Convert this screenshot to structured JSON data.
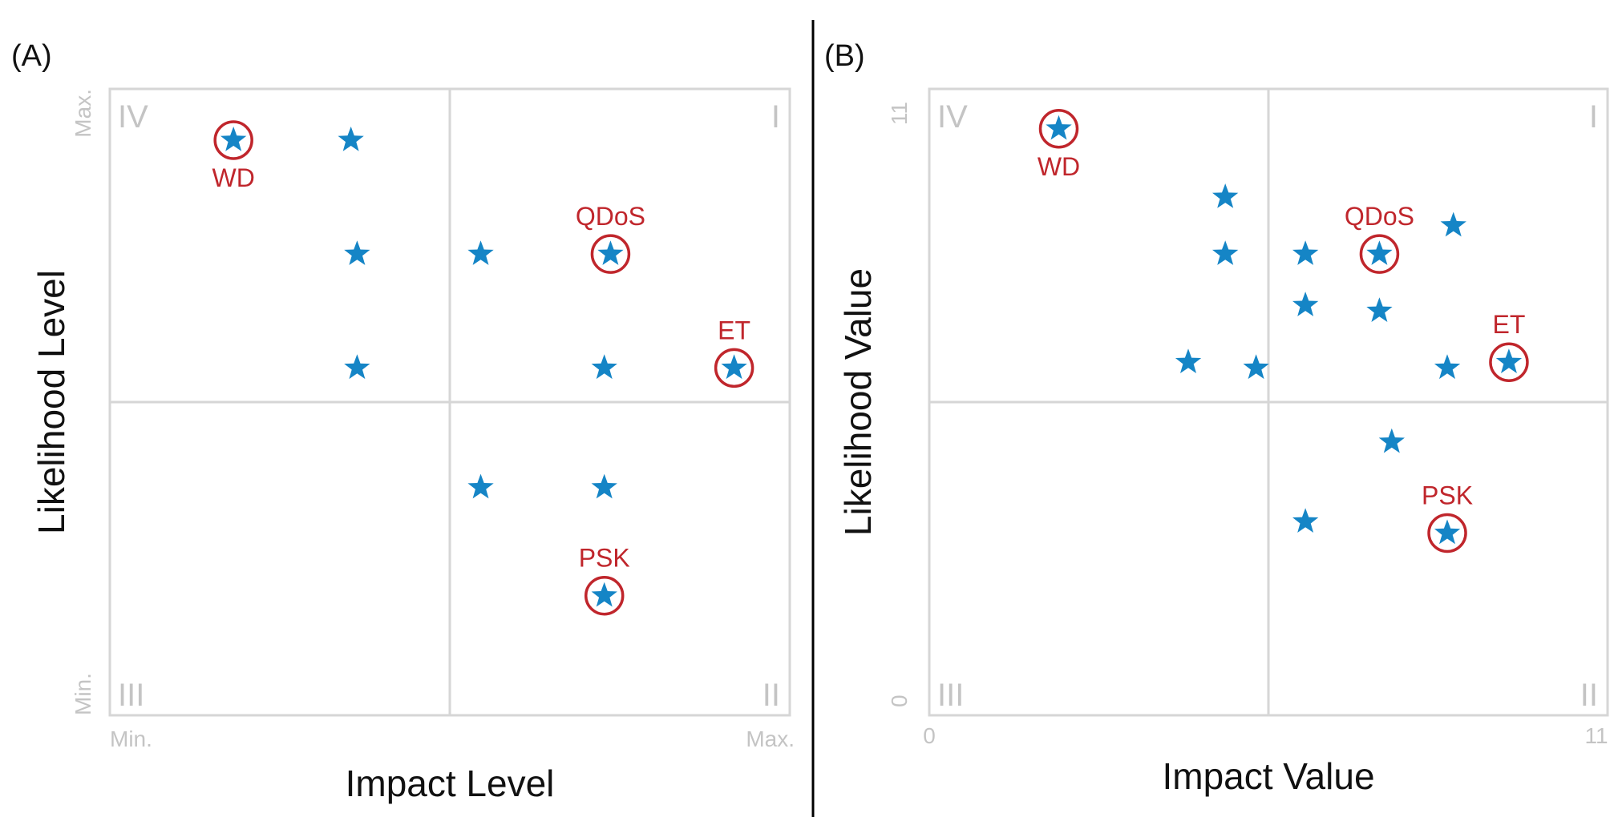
{
  "colors": {
    "star": "#1585c6",
    "highlight": "#c0262c",
    "grid": "#d6d6d6",
    "muted_text": "#c4c4c4",
    "text": "#111111",
    "divider": "#000000"
  },
  "chart_data": [
    {
      "type": "scatter",
      "panel_label": "(A)",
      "xlabel": "Impact Level",
      "ylabel": "Likelihood Level",
      "xlim": [
        0,
        11
      ],
      "ylim": [
        0,
        11
      ],
      "x_tick_labels": [
        "Min.",
        "Max."
      ],
      "y_tick_labels": [
        "Min.",
        "Max."
      ],
      "quadrant_labels": [
        "I",
        "II",
        "III",
        "IV"
      ],
      "marker": "star",
      "points": [
        {
          "x": 2.0,
          "y": 10.1
        },
        {
          "x": 3.9,
          "y": 10.1
        },
        {
          "x": 4.0,
          "y": 8.1
        },
        {
          "x": 6.0,
          "y": 8.1
        },
        {
          "x": 8.1,
          "y": 8.1
        },
        {
          "x": 4.0,
          "y": 6.1
        },
        {
          "x": 8.0,
          "y": 6.1
        },
        {
          "x": 10.1,
          "y": 6.1
        },
        {
          "x": 6.0,
          "y": 4.0
        },
        {
          "x": 8.0,
          "y": 4.0
        },
        {
          "x": 8.0,
          "y": 2.1
        }
      ],
      "highlighted": [
        {
          "label": "WD",
          "x": 2.0,
          "y": 10.1
        },
        {
          "label": "QDoS",
          "x": 8.1,
          "y": 8.1
        },
        {
          "label": "ET",
          "x": 10.1,
          "y": 6.1
        },
        {
          "label": "PSK",
          "x": 8.0,
          "y": 2.1
        }
      ]
    },
    {
      "type": "scatter",
      "panel_label": "(B)",
      "xlabel": "Impact Value",
      "ylabel": "Likelihood Value",
      "xlim": [
        0,
        11
      ],
      "ylim": [
        0,
        11
      ],
      "x_tick_labels": [
        "0",
        "11"
      ],
      "y_tick_labels": [
        "0",
        "11"
      ],
      "quadrant_labels": [
        "I",
        "II",
        "III",
        "IV"
      ],
      "marker": "star",
      "points": [
        {
          "x": 2.1,
          "y": 10.3
        },
        {
          "x": 4.8,
          "y": 9.1
        },
        {
          "x": 4.8,
          "y": 8.1
        },
        {
          "x": 6.1,
          "y": 8.1
        },
        {
          "x": 7.3,
          "y": 8.1
        },
        {
          "x": 8.5,
          "y": 8.6
        },
        {
          "x": 6.1,
          "y": 7.2
        },
        {
          "x": 7.3,
          "y": 7.1
        },
        {
          "x": 4.2,
          "y": 6.2
        },
        {
          "x": 5.3,
          "y": 6.1
        },
        {
          "x": 8.4,
          "y": 6.1
        },
        {
          "x": 9.4,
          "y": 6.2
        },
        {
          "x": 7.5,
          "y": 4.8
        },
        {
          "x": 6.1,
          "y": 3.4
        },
        {
          "x": 8.4,
          "y": 3.2
        }
      ],
      "highlighted": [
        {
          "label": "WD",
          "x": 2.1,
          "y": 10.3
        },
        {
          "label": "QDoS",
          "x": 7.3,
          "y": 8.1
        },
        {
          "label": "ET",
          "x": 9.4,
          "y": 6.2
        },
        {
          "label": "PSK",
          "x": 8.4,
          "y": 3.2
        }
      ]
    }
  ]
}
